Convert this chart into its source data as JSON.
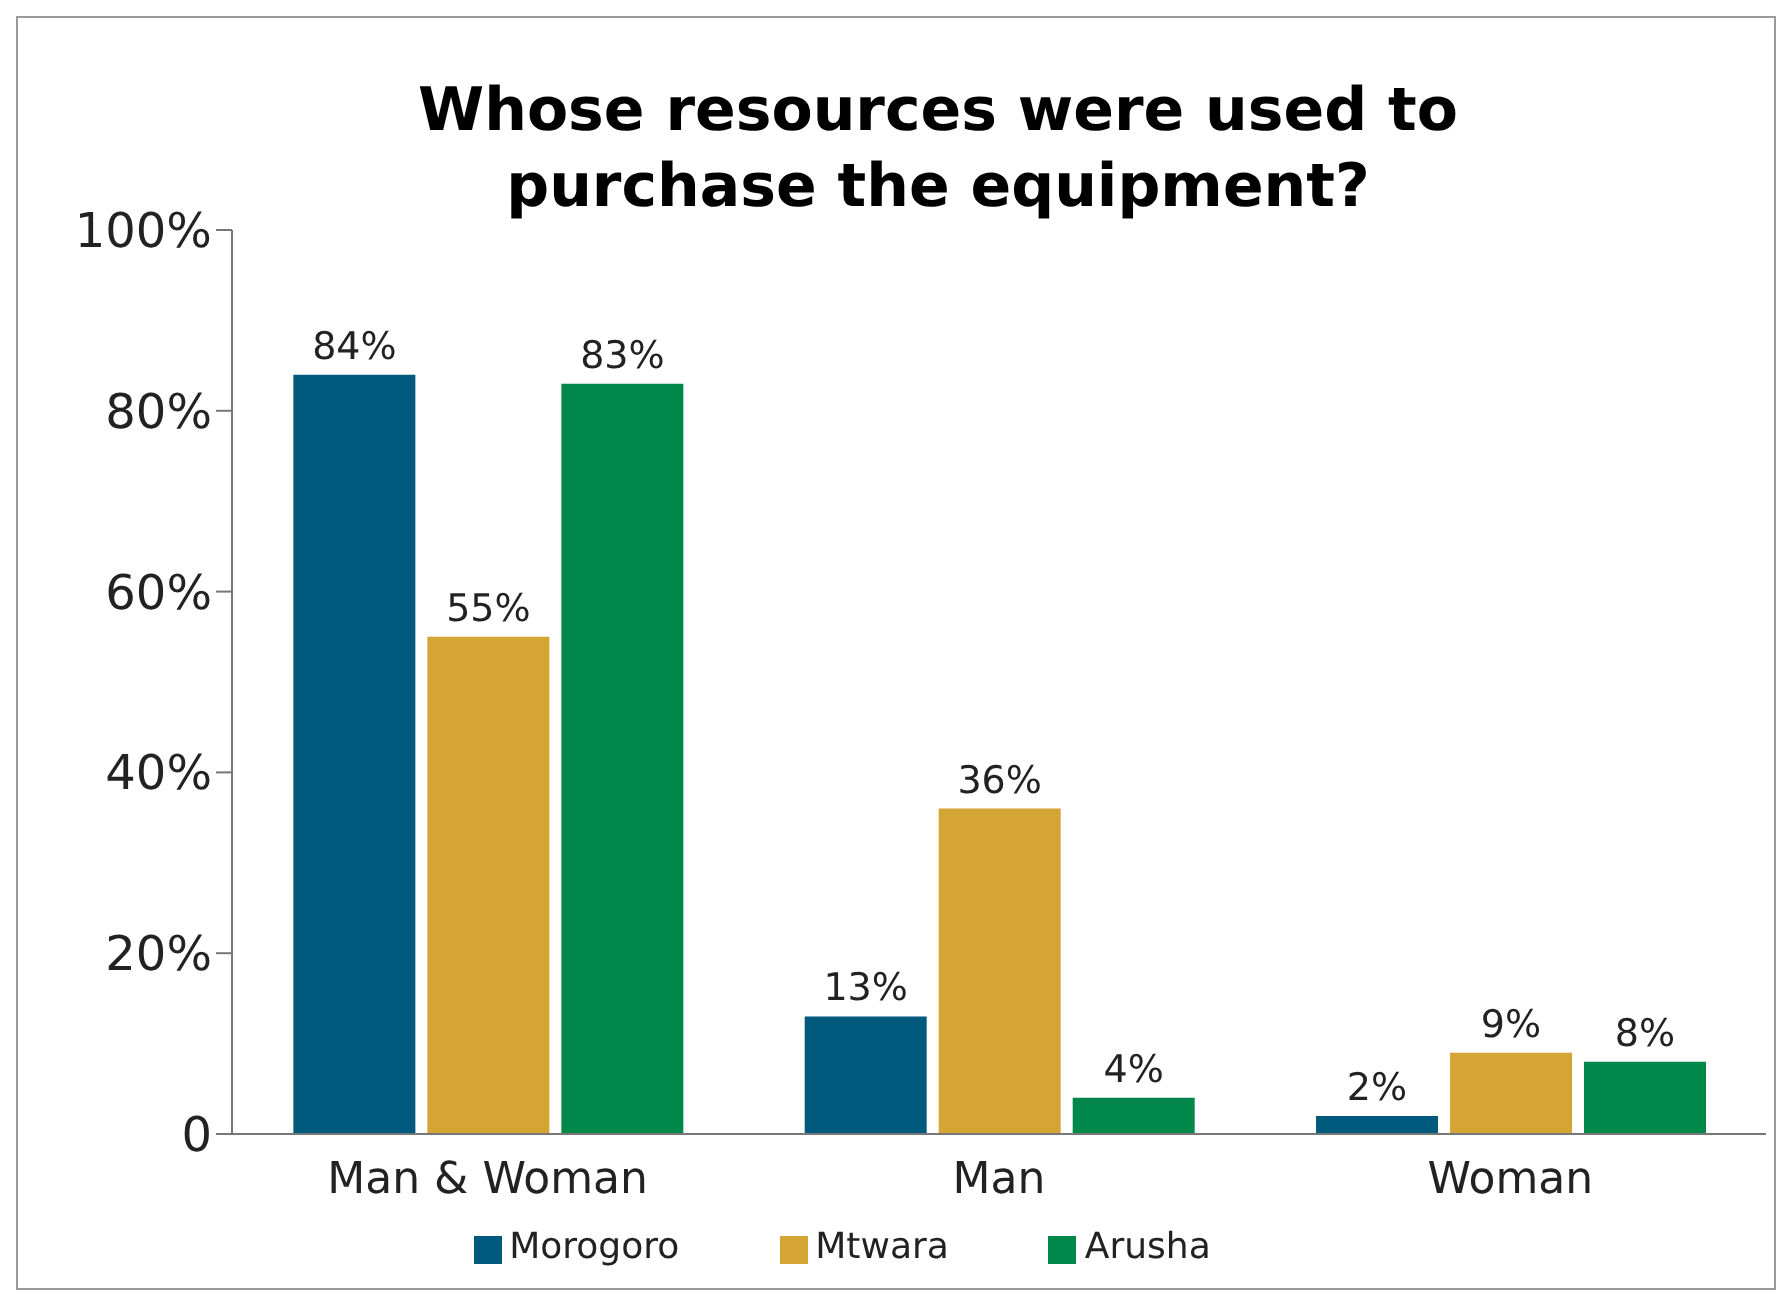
{
  "chart_data": {
    "type": "bar",
    "title": "Whose resources were used to purchase the equipment?",
    "categories": [
      "Man & Woman",
      "Man",
      "Woman"
    ],
    "series": [
      {
        "name": "Morogoro",
        "color": "#005a7d",
        "values": [
          84,
          13,
          2
        ],
        "value_labels": [
          "84%",
          "13%",
          "2%"
        ]
      },
      {
        "name": "Mtwara",
        "color": "#d4a435",
        "values": [
          55,
          36,
          9
        ],
        "value_labels": [
          "55%",
          "36%",
          "9%"
        ]
      },
      {
        "name": "Arusha",
        "color": "#00874a",
        "values": [
          83,
          4,
          8
        ],
        "value_labels": [
          "83%",
          "4%",
          "8%"
        ]
      }
    ],
    "ylim": [
      0,
      100
    ],
    "yticks": [
      0,
      {
        "value": 20,
        "label": "20%"
      },
      {
        "value": 40,
        "label": "40%"
      },
      {
        "value": 60,
        "label": "60%"
      },
      {
        "value": 80,
        "label": "80%"
      },
      {
        "value": 100,
        "label": "100%"
      }
    ],
    "grid": false,
    "legend": "bottom"
  }
}
